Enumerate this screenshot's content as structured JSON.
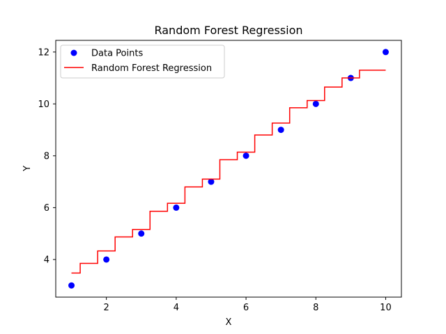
{
  "chart_data": {
    "type": "scatter",
    "title": "Random Forest Regression",
    "xlabel": "X",
    "ylabel": "Y",
    "xlim": [
      0.55,
      10.45
    ],
    "ylim": [
      2.55,
      12.45
    ],
    "xticks": [
      2,
      4,
      6,
      8,
      10
    ],
    "yticks": [
      4,
      6,
      8,
      10,
      12
    ],
    "grid": false,
    "legend_position": "top-left",
    "series": [
      {
        "name": "Data Points",
        "kind": "scatter",
        "color": "#0000ff",
        "x": [
          1,
          2,
          3,
          4,
          5,
          6,
          7,
          8,
          9,
          10
        ],
        "y": [
          3,
          4,
          5,
          6,
          7,
          8,
          9,
          10,
          11,
          12
        ]
      },
      {
        "name": "Random Forest Regression",
        "kind": "step",
        "color": "#ff0000",
        "x": [
          1.0,
          1.5,
          2.0,
          2.5,
          3.0,
          3.5,
          4.0,
          4.5,
          5.0,
          5.5,
          6.0,
          6.5,
          7.0,
          7.5,
          8.0,
          8.5,
          9.0,
          9.5,
          10.0
        ],
        "y": [
          3.48,
          3.85,
          4.33,
          4.87,
          5.16,
          5.86,
          6.17,
          6.8,
          7.1,
          7.85,
          8.14,
          8.8,
          9.26,
          9.85,
          10.13,
          10.65,
          11.0,
          11.3,
          11.3
        ]
      }
    ]
  }
}
